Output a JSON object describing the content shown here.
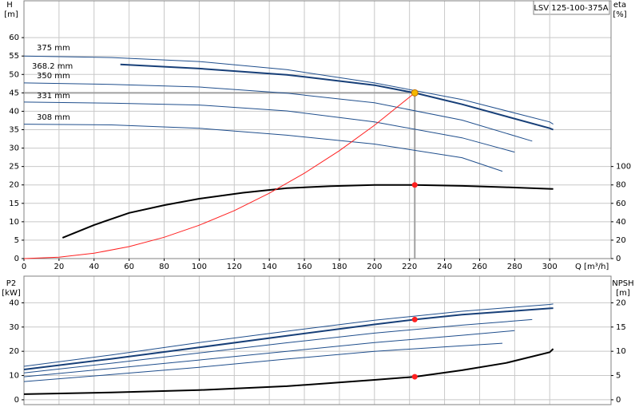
{
  "chart_data": [
    {
      "type": "line",
      "label": "LSV 125-100-375A",
      "x_label": "Q [m³/h]",
      "y_label": "H",
      "y_unit": "[m]",
      "y2_label": "eta",
      "y2_unit": "[%]",
      "xlim": [
        0,
        335
      ],
      "xticks": [
        0,
        20,
        40,
        60,
        80,
        100,
        120,
        140,
        160,
        180,
        200,
        220,
        240,
        260,
        280,
        300
      ],
      "ylim": [
        0,
        70
      ],
      "yticks": [
        0,
        5,
        10,
        15,
        20,
        25,
        30,
        35,
        40,
        45,
        50,
        55,
        60
      ],
      "y2lim": [
        0,
        280
      ],
      "y2ticks": [
        0,
        20,
        40,
        60,
        80,
        100
      ],
      "grid": true,
      "series": [
        {
          "name": "375 mm",
          "color": "#1f4e8c",
          "x": [
            0,
            50,
            100,
            150,
            200,
            250,
            300,
            302
          ],
          "values": [
            55,
            54.6,
            53.5,
            51.3,
            47.7,
            43.2,
            37.1,
            36.5
          ]
        },
        {
          "name": "368.2 mm",
          "color": "#173f78",
          "x": [
            55,
            100,
            150,
            200,
            223,
            250,
            300,
            302
          ],
          "values": [
            52.7,
            51.6,
            49.9,
            47.1,
            45,
            41.9,
            35.4,
            35
          ]
        },
        {
          "name": "350 mm",
          "color": "#1f4e8c",
          "x": [
            0,
            50,
            100,
            150,
            200,
            250,
            290
          ],
          "values": [
            47.7,
            47.3,
            46.6,
            44.9,
            42.3,
            37.6,
            31.9
          ]
        },
        {
          "name": "331 mm",
          "color": "#1f4e8c",
          "x": [
            0,
            50,
            100,
            150,
            200,
            250,
            280
          ],
          "values": [
            42.5,
            42.2,
            41.7,
            40.1,
            37.1,
            32.8,
            28.9
          ]
        },
        {
          "name": "308 mm",
          "color": "#1f4e8c",
          "x": [
            0,
            50,
            100,
            150,
            200,
            250,
            273
          ],
          "values": [
            36.5,
            36.3,
            35.4,
            33.5,
            31.1,
            27.4,
            23.7
          ]
        },
        {
          "color": "#000000",
          "axis": "y2",
          "x": [
            22,
            40,
            60,
            80,
            100,
            125,
            150,
            175,
            200,
            223,
            250,
            275,
            300,
            302
          ],
          "values": [
            22.6,
            36.5,
            49.6,
            58,
            65,
            71.5,
            76.5,
            78.7,
            80,
            80,
            79,
            77.5,
            75.8,
            75.6
          ]
        },
        {
          "color": "#ff2020",
          "x": [
            0,
            20,
            40,
            60,
            80,
            100,
            120,
            140,
            160,
            180,
            200,
            223
          ],
          "values": [
            0,
            0.36,
            1.45,
            3.26,
            5.79,
            9.05,
            13.03,
            17.74,
            23.16,
            29.31,
            36.19,
            45
          ]
        }
      ],
      "duty_point": {
        "x": 223,
        "y": 45,
        "eta": 80,
        "color": "#f5b800"
      }
    },
    {
      "type": "line",
      "y_label": "P2",
      "y_unit": "[kW]",
      "y2_label": "NPSH",
      "y2_unit": "[m]",
      "xlim": [
        0,
        335
      ],
      "ylim": [
        -2,
        51
      ],
      "yticks": [
        0,
        10,
        20,
        30,
        40
      ],
      "y2lim": [
        -1,
        25.5
      ],
      "y2ticks": [
        0,
        5,
        10,
        15,
        20
      ],
      "grid": true,
      "series": [
        {
          "color": "#1f4e8c",
          "x": [
            0,
            50,
            100,
            150,
            200,
            250,
            300,
            302
          ],
          "values": [
            13.8,
            18.5,
            23.6,
            28.3,
            32.8,
            36.5,
            39.3,
            39.5
          ]
        },
        {
          "color": "#173f78",
          "x": [
            0,
            50,
            100,
            150,
            200,
            223,
            250,
            300,
            302
          ],
          "values": [
            12.5,
            16.9,
            21.6,
            26.4,
            31.1,
            33.1,
            35.1,
            37.7,
            37.8
          ]
        },
        {
          "color": "#1f4e8c",
          "x": [
            0,
            50,
            100,
            150,
            200,
            250,
            290
          ],
          "values": [
            11.1,
            15.1,
            19.3,
            23.5,
            27.5,
            30.8,
            33.1
          ]
        },
        {
          "color": "#1f4e8c",
          "x": [
            0,
            50,
            100,
            150,
            200,
            250,
            280
          ],
          "values": [
            9.5,
            12.9,
            16.4,
            20,
            23.6,
            26.6,
            28.5
          ]
        },
        {
          "color": "#1f4e8c",
          "x": [
            0,
            50,
            100,
            150,
            200,
            250,
            273
          ],
          "values": [
            7.5,
            10.4,
            13.4,
            16.8,
            20,
            22.3,
            23.3
          ]
        },
        {
          "color": "#000000",
          "axis": "y2",
          "x": [
            0,
            50,
            100,
            150,
            200,
            223,
            250,
            275,
            300,
            302
          ],
          "values": [
            1.15,
            1.5,
            2.0,
            2.8,
            4.1,
            4.75,
            6.1,
            7.6,
            9.8,
            10.5
          ]
        }
      ],
      "duty_point": {
        "x": 223,
        "p2": 33.1,
        "npsh": 4.75,
        "color": "#ff2020"
      }
    }
  ]
}
